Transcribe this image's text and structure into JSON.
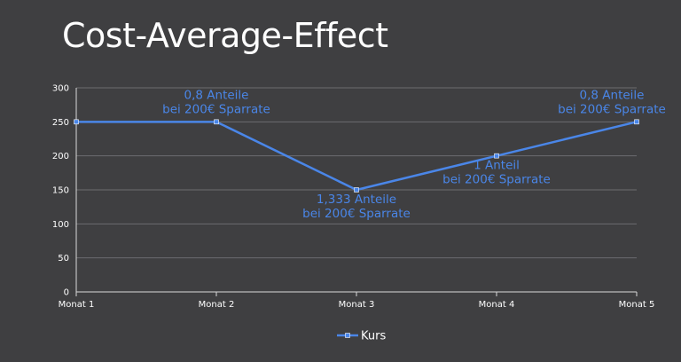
{
  "title": "Cost-Average-Effect",
  "chart_data": {
    "type": "line",
    "categories": [
      "Monat 1",
      "Monat 2",
      "Monat 3",
      "Monat 4",
      "Monat 5"
    ],
    "series": [
      {
        "name": "Kurs",
        "values": [
          250,
          250,
          150,
          200,
          250
        ]
      }
    ],
    "ylim": [
      0,
      300
    ],
    "yticks": [
      0,
      50,
      100,
      150,
      200,
      250,
      300
    ],
    "grid": true,
    "legend": "bottom",
    "line_color": "#4a86e8",
    "annotations": [
      {
        "point": 1,
        "lines": [
          "0,8 Anteile",
          "bei 200€ Sparrate"
        ]
      },
      {
        "point": 2,
        "lines": [
          "1,333 Anteile",
          "bei 200€ Sparrate"
        ]
      },
      {
        "point": 3,
        "lines": [
          "1 Anteil",
          "bei 200€ Sparrate"
        ]
      },
      {
        "point": 4,
        "lines": [
          "0,8 Anteile",
          "bei 200€ Sparrate"
        ]
      }
    ]
  }
}
